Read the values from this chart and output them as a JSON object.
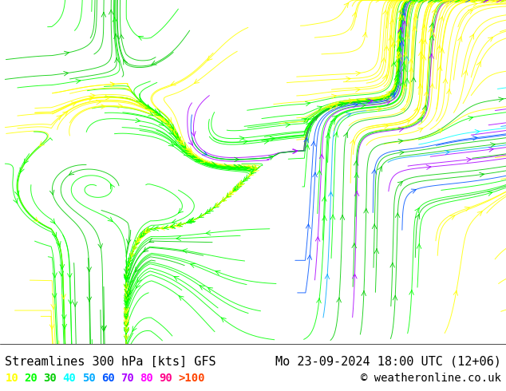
{
  "title_left": "Streamlines 300 hPa [kts] GFS",
  "title_right": "Mo 23-09-2024 18:00 UTC (12+06)",
  "copyright": "© weatheronline.co.uk",
  "legend_labels": [
    "10",
    "20",
    "30",
    "40",
    "50",
    "60",
    "70",
    "80",
    "90",
    ">100"
  ],
  "legend_colors": [
    "#ffff00",
    "#00ff00",
    "#00cc00",
    "#00ffff",
    "#00aaff",
    "#0055ff",
    "#aa00ff",
    "#ff00ff",
    "#ff0088",
    "#ff4400"
  ],
  "background_color": "#ffffff",
  "map_bg_color": "#f0f0f0",
  "bottom_bar_color": "#ffffff",
  "text_color": "#000000",
  "font_size_title": 11,
  "font_size_legend": 10,
  "fig_width": 6.34,
  "fig_height": 4.9,
  "dpi": 100
}
